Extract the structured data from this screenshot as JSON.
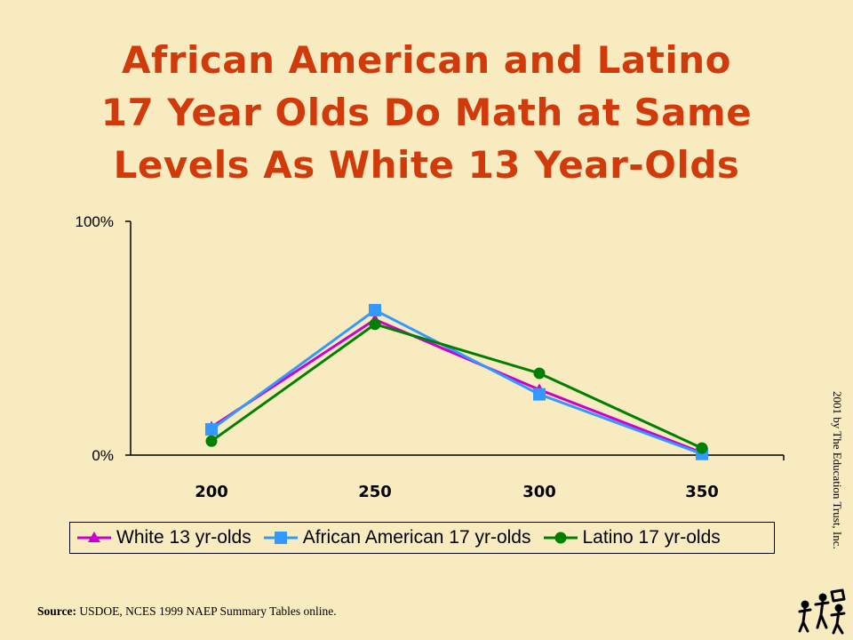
{
  "slide": {
    "title_lines": [
      "African American and Latino",
      "17 Year Olds Do Math at Same",
      "Levels As White 13 Year-Olds"
    ],
    "source_label": "Source:",
    "source_text": " USDOE, NCES 1999 NAEP Summary Tables online.",
    "copyright": "2001 by The Education Trust, Inc.",
    "logo_icon": "education-trust-logo-icon"
  },
  "chart_data": {
    "type": "line",
    "categories": [
      "200",
      "250",
      "300",
      "350"
    ],
    "y_tick_labels": [
      "100%",
      "0%"
    ],
    "ylim": [
      0,
      100
    ],
    "grid": false,
    "legend_placement": "bottom",
    "series": [
      {
        "name": "White 13 yr-olds",
        "values": [
          12,
          58,
          28,
          1
        ],
        "color": "#cc00cc",
        "marker": "triangle"
      },
      {
        "name": "African American 17 yr-olds",
        "values": [
          11,
          62,
          26,
          0.5
        ],
        "color": "#3399ff",
        "marker": "square"
      },
      {
        "name": "Latino 17 yr-olds",
        "values": [
          6,
          56,
          35,
          3
        ],
        "color": "#008000",
        "marker": "circle"
      }
    ]
  }
}
